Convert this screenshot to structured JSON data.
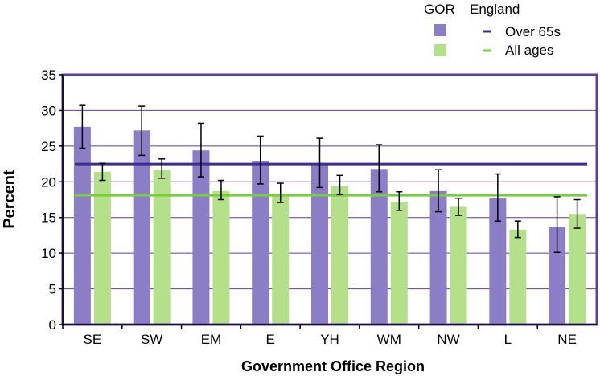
{
  "chart_data": {
    "type": "bar",
    "xlabel": "Government Office Region",
    "ylabel": "Percent",
    "ylim": [
      0,
      35
    ],
    "yticks": [
      0,
      5,
      10,
      15,
      20,
      25,
      30,
      35
    ],
    "grid": true,
    "legend_placement": "top-right",
    "categories": [
      "SE",
      "SW",
      "EM",
      "E",
      "YH",
      "WM",
      "NW",
      "L",
      "NE"
    ],
    "series": [
      {
        "name": "Over 65s",
        "color": "#8C7EC6",
        "values": [
          27.7,
          27.2,
          24.4,
          22.9,
          22.5,
          21.8,
          18.7,
          17.7,
          13.7
        ],
        "error_low": [
          24.7,
          23.7,
          20.7,
          19.7,
          19.2,
          18.6,
          15.8,
          14.5,
          10.1
        ],
        "error_high": [
          30.7,
          30.6,
          28.2,
          26.4,
          26.1,
          25.2,
          21.7,
          21.1,
          17.9
        ]
      },
      {
        "name": "All ages",
        "color": "#B5E08A",
        "values": [
          21.4,
          21.7,
          18.7,
          18.3,
          19.4,
          17.2,
          16.5,
          13.3,
          15.5
        ],
        "error_low": [
          20.2,
          20.5,
          17.5,
          17.1,
          18.2,
          16.0,
          15.3,
          12.2,
          13.5
        ],
        "error_high": [
          22.6,
          23.2,
          20.2,
          19.8,
          20.9,
          18.6,
          17.7,
          14.5,
          17.5
        ]
      }
    ],
    "reference_lines": [
      {
        "name": "Over 65s",
        "value": 22.5,
        "color": "#3C2E8C"
      },
      {
        "name": "All ages",
        "value": 18.1,
        "color": "#7DCB3A"
      }
    ],
    "legend": {
      "header_gor": "GOR",
      "header_england": "England",
      "entries": [
        "Over 65s",
        "All ages"
      ]
    },
    "colors": {
      "frame": "#5B3FA0",
      "grid": "#5B3FA0",
      "errorbar": "#000000"
    }
  }
}
